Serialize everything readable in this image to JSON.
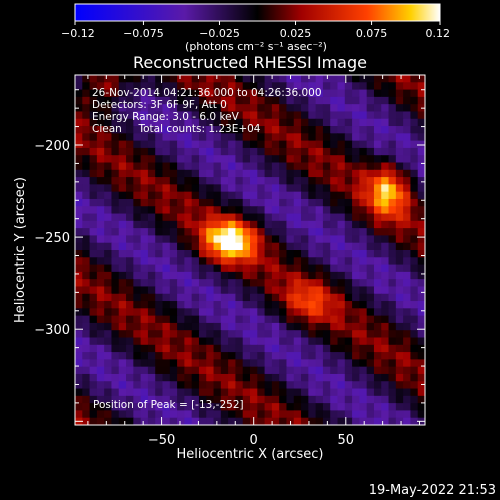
{
  "chart_data": {
    "type": "heatmap",
    "title": "Reconstructed RHESSI Image",
    "xlabel": "Heliocentric X (arcsec)",
    "ylabel": "Heliocentric Y (arcsec)",
    "xlim": [
      -97,
      93
    ],
    "ylim": [
      -352,
      -162
    ],
    "xticks": [
      -50,
      0,
      50
    ],
    "xtick_labels": [
      "−50",
      "0",
      "50"
    ],
    "yticks": [
      -200,
      -250,
      -300
    ],
    "ytick_labels": [
      "−200",
      "−250",
      "−300"
    ],
    "colorbar": {
      "range": [
        -0.12,
        0.12
      ],
      "ticks": [
        -0.12,
        -0.075,
        -0.025,
        0.025,
        0.075,
        0.12
      ],
      "tick_labels": [
        "−0.12",
        "−0.075",
        "−0.025",
        "0.025",
        "0.075",
        "0.12"
      ],
      "unit_label": "(photons cm⁻² s⁻¹ asec⁻²)"
    },
    "info_lines": [
      "26-Nov-2014 04:21:36.000 to 04:26:36.000",
      "Detectors: 3F 6F 9F, Att 0",
      "Energy Range: 3.0 - 6.0 keV",
      "Clean     Total counts: 1.23E+04"
    ],
    "peak_label": "Position of Peak = [-13,-252]",
    "peak": [
      -13,
      -252
    ],
    "timestamp": "19-May-2022 21:53",
    "grid": false,
    "sources": [
      {
        "x": -13,
        "y": -252,
        "amp": 0.12,
        "sx": 10,
        "sy": 8
      },
      {
        "x": 73,
        "y": -225,
        "amp": 0.09,
        "sx": 8,
        "sy": 10
      },
      {
        "x": 30,
        "y": -285,
        "amp": 0.05,
        "sx": 10,
        "sy": 8
      },
      {
        "x": -80,
        "y": -165,
        "amp": 0.07,
        "sx": 10,
        "sy": 10
      }
    ],
    "ridge_angle_deg": -35,
    "ridge_period_arcsec": 64
  }
}
